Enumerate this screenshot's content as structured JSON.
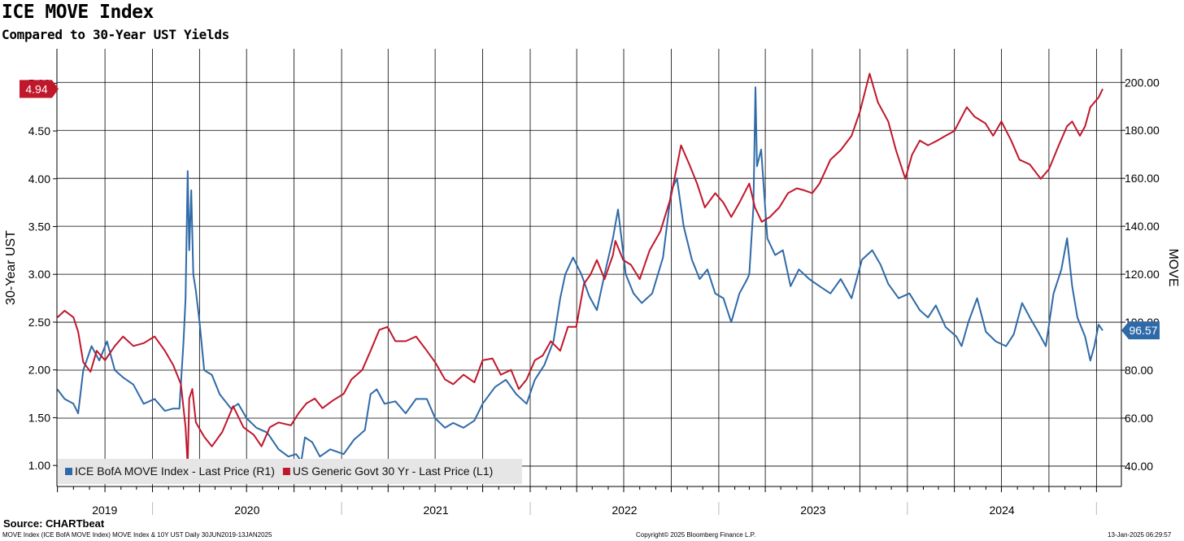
{
  "title": "ICE MOVE Index",
  "subtitle": "Compared to 30-Year UST Yields",
  "source": "Source: CHARTbeat",
  "footer_left": "MOVE Index (ICE BofA MOVE Index) MOVE Index & 10Y UST  Daily 30JUN2019-13JAN2025",
  "footer_center": "Copyright© 2025 Bloomberg Finance L.P.",
  "footer_right": "13-Jan-2025 06:29:57",
  "chart_data": {
    "type": "line",
    "x_range": [
      "2019-06-30",
      "2025-01-13"
    ],
    "x_tick_labels": [
      "2019",
      "2020",
      "2021",
      "2022",
      "2023",
      "2024"
    ],
    "ylabel_left": "30-Year UST",
    "ylabel_right": "MOVE",
    "y_left_ticks": [
      "1.00",
      "1.50",
      "2.00",
      "2.50",
      "3.00",
      "3.50",
      "4.00",
      "4.50",
      "5.00"
    ],
    "y_right_ticks": [
      "40.00",
      "60.00",
      "80.00",
      "100.00",
      "120.00",
      "140.00",
      "160.00",
      "180.00",
      "200.00"
    ],
    "ylim_left": [
      0.78,
      5.36
    ],
    "ylim_right": [
      31.5,
      214
    ],
    "grid": true,
    "legend_position": "bottom-left",
    "series": [
      {
        "name": "ICE BofA MOVE Index - Last Price (R1)",
        "axis": "right",
        "color": "#2f6aa8",
        "last_value_label": "96.57",
        "points": [
          [
            "2019-07-01",
            72
          ],
          [
            "2019-07-15",
            68
          ],
          [
            "2019-08-01",
            66
          ],
          [
            "2019-08-10",
            62
          ],
          [
            "2019-08-20",
            80
          ],
          [
            "2019-09-05",
            90
          ],
          [
            "2019-09-20",
            84
          ],
          [
            "2019-10-05",
            92
          ],
          [
            "2019-10-20",
            80
          ],
          [
            "2019-11-05",
            77
          ],
          [
            "2019-11-25",
            74
          ],
          [
            "2019-12-15",
            66
          ],
          [
            "2020-01-05",
            68
          ],
          [
            "2020-01-25",
            63
          ],
          [
            "2020-02-10",
            64
          ],
          [
            "2020-02-22",
            64
          ],
          [
            "2020-03-01",
            92
          ],
          [
            "2020-03-05",
            110
          ],
          [
            "2020-03-09",
            163
          ],
          [
            "2020-03-12",
            130
          ],
          [
            "2020-03-16",
            155
          ],
          [
            "2020-03-20",
            120
          ],
          [
            "2020-03-25",
            113
          ],
          [
            "2020-04-01",
            100
          ],
          [
            "2020-04-10",
            80
          ],
          [
            "2020-04-25",
            78
          ],
          [
            "2020-05-10",
            70
          ],
          [
            "2020-06-01",
            64
          ],
          [
            "2020-06-15",
            66
          ],
          [
            "2020-07-01",
            60
          ],
          [
            "2020-07-20",
            56
          ],
          [
            "2020-08-10",
            54
          ],
          [
            "2020-09-01",
            47
          ],
          [
            "2020-09-20",
            44
          ],
          [
            "2020-10-05",
            45
          ],
          [
            "2020-10-15",
            42
          ],
          [
            "2020-10-22",
            52
          ],
          [
            "2020-11-05",
            50
          ],
          [
            "2020-11-20",
            44
          ],
          [
            "2020-12-10",
            47
          ],
          [
            "2021-01-05",
            45
          ],
          [
            "2021-01-25",
            51
          ],
          [
            "2021-02-15",
            55
          ],
          [
            "2021-02-26",
            70
          ],
          [
            "2021-03-10",
            72
          ],
          [
            "2021-03-25",
            66
          ],
          [
            "2021-04-15",
            67
          ],
          [
            "2021-05-05",
            62
          ],
          [
            "2021-05-25",
            68
          ],
          [
            "2021-06-15",
            68
          ],
          [
            "2021-07-01",
            60
          ],
          [
            "2021-07-20",
            56
          ],
          [
            "2021-08-05",
            58
          ],
          [
            "2021-08-25",
            56
          ],
          [
            "2021-09-15",
            59
          ],
          [
            "2021-10-01",
            66
          ],
          [
            "2021-10-25",
            73
          ],
          [
            "2021-11-15",
            76
          ],
          [
            "2021-12-05",
            70
          ],
          [
            "2021-12-25",
            66
          ],
          [
            "2022-01-10",
            76
          ],
          [
            "2022-01-28",
            82
          ],
          [
            "2022-02-15",
            92
          ],
          [
            "2022-02-28",
            110
          ],
          [
            "2022-03-10",
            120
          ],
          [
            "2022-03-25",
            127
          ],
          [
            "2022-04-10",
            120
          ],
          [
            "2022-04-25",
            111
          ],
          [
            "2022-05-10",
            105
          ],
          [
            "2022-05-25",
            120
          ],
          [
            "2022-06-10",
            135
          ],
          [
            "2022-06-20",
            147
          ],
          [
            "2022-07-05",
            120
          ],
          [
            "2022-07-20",
            112
          ],
          [
            "2022-08-05",
            108
          ],
          [
            "2022-08-25",
            112
          ],
          [
            "2022-09-15",
            127
          ],
          [
            "2022-10-01",
            155
          ],
          [
            "2022-10-12",
            160
          ],
          [
            "2022-10-25",
            140
          ],
          [
            "2022-11-10",
            126
          ],
          [
            "2022-11-25",
            118
          ],
          [
            "2022-12-10",
            122
          ],
          [
            "2022-12-25",
            112
          ],
          [
            "2023-01-10",
            110
          ],
          [
            "2023-01-25",
            100
          ],
          [
            "2023-02-10",
            112
          ],
          [
            "2023-02-25",
            118
          ],
          [
            "2023-03-01",
            120
          ],
          [
            "2023-03-09",
            148
          ],
          [
            "2023-03-13",
            198
          ],
          [
            "2023-03-16",
            165
          ],
          [
            "2023-03-24",
            172
          ],
          [
            "2023-04-05",
            135
          ],
          [
            "2023-04-20",
            128
          ],
          [
            "2023-05-05",
            130
          ],
          [
            "2023-05-20",
            115
          ],
          [
            "2023-06-05",
            122
          ],
          [
            "2023-06-25",
            118
          ],
          [
            "2023-07-15",
            115
          ],
          [
            "2023-08-05",
            112
          ],
          [
            "2023-08-25",
            118
          ],
          [
            "2023-09-15",
            110
          ],
          [
            "2023-10-05",
            126
          ],
          [
            "2023-10-25",
            130
          ],
          [
            "2023-11-10",
            124
          ],
          [
            "2023-11-25",
            116
          ],
          [
            "2023-12-15",
            110
          ],
          [
            "2024-01-05",
            112
          ],
          [
            "2024-01-25",
            105
          ],
          [
            "2024-02-10",
            102
          ],
          [
            "2024-02-25",
            107
          ],
          [
            "2024-03-15",
            98
          ],
          [
            "2024-04-05",
            94
          ],
          [
            "2024-04-15",
            90
          ],
          [
            "2024-04-28",
            100
          ],
          [
            "2024-05-15",
            110
          ],
          [
            "2024-06-01",
            96
          ],
          [
            "2024-06-20",
            92
          ],
          [
            "2024-07-10",
            90
          ],
          [
            "2024-07-25",
            95
          ],
          [
            "2024-08-10",
            108
          ],
          [
            "2024-08-25",
            102
          ],
          [
            "2024-09-10",
            96
          ],
          [
            "2024-09-25",
            90
          ],
          [
            "2024-10-10",
            112
          ],
          [
            "2024-10-25",
            122
          ],
          [
            "2024-11-05",
            135
          ],
          [
            "2024-11-15",
            115
          ],
          [
            "2024-11-25",
            102
          ],
          [
            "2024-12-10",
            94
          ],
          [
            "2024-12-20",
            84
          ],
          [
            "2024-12-28",
            90
          ],
          [
            "2025-01-05",
            99
          ],
          [
            "2025-01-13",
            96.57
          ]
        ]
      },
      {
        "name": "US Generic Govt 30 Yr - Last Price (L1)",
        "axis": "left",
        "color": "#c0172b",
        "last_value_label": "4.94",
        "points": [
          [
            "2019-07-01",
            2.55
          ],
          [
            "2019-07-15",
            2.62
          ],
          [
            "2019-08-01",
            2.55
          ],
          [
            "2019-08-10",
            2.4
          ],
          [
            "2019-08-20",
            2.08
          ],
          [
            "2019-09-03",
            1.98
          ],
          [
            "2019-09-15",
            2.2
          ],
          [
            "2019-10-01",
            2.1
          ],
          [
            "2019-10-20",
            2.25
          ],
          [
            "2019-11-05",
            2.35
          ],
          [
            "2019-11-25",
            2.25
          ],
          [
            "2019-12-15",
            2.28
          ],
          [
            "2020-01-05",
            2.35
          ],
          [
            "2020-01-25",
            2.2
          ],
          [
            "2020-02-10",
            2.05
          ],
          [
            "2020-02-25",
            1.85
          ],
          [
            "2020-03-05",
            1.4
          ],
          [
            "2020-03-09",
            1.0
          ],
          [
            "2020-03-12",
            1.7
          ],
          [
            "2020-03-18",
            1.8
          ],
          [
            "2020-03-25",
            1.45
          ],
          [
            "2020-04-10",
            1.3
          ],
          [
            "2020-04-25",
            1.2
          ],
          [
            "2020-05-15",
            1.35
          ],
          [
            "2020-06-05",
            1.62
          ],
          [
            "2020-06-25",
            1.4
          ],
          [
            "2020-07-15",
            1.32
          ],
          [
            "2020-07-30",
            1.2
          ],
          [
            "2020-08-15",
            1.4
          ],
          [
            "2020-09-01",
            1.45
          ],
          [
            "2020-09-25",
            1.42
          ],
          [
            "2020-10-10",
            1.55
          ],
          [
            "2020-10-25",
            1.65
          ],
          [
            "2020-11-10",
            1.7
          ],
          [
            "2020-11-25",
            1.6
          ],
          [
            "2020-12-15",
            1.68
          ],
          [
            "2021-01-05",
            1.75
          ],
          [
            "2021-01-20",
            1.9
          ],
          [
            "2021-02-10",
            2.0
          ],
          [
            "2021-02-26",
            2.2
          ],
          [
            "2021-03-15",
            2.42
          ],
          [
            "2021-03-31",
            2.45
          ],
          [
            "2021-04-15",
            2.3
          ],
          [
            "2021-05-05",
            2.3
          ],
          [
            "2021-05-25",
            2.35
          ],
          [
            "2021-06-15",
            2.2
          ],
          [
            "2021-07-01",
            2.08
          ],
          [
            "2021-07-20",
            1.9
          ],
          [
            "2021-08-05",
            1.85
          ],
          [
            "2021-08-25",
            1.95
          ],
          [
            "2021-09-15",
            1.87
          ],
          [
            "2021-10-01",
            2.1
          ],
          [
            "2021-10-20",
            2.12
          ],
          [
            "2021-11-05",
            1.95
          ],
          [
            "2021-11-25",
            2.0
          ],
          [
            "2021-12-10",
            1.8
          ],
          [
            "2021-12-25",
            1.9
          ],
          [
            "2022-01-10",
            2.1
          ],
          [
            "2022-01-25",
            2.15
          ],
          [
            "2022-02-10",
            2.3
          ],
          [
            "2022-02-28",
            2.2
          ],
          [
            "2022-03-15",
            2.45
          ],
          [
            "2022-03-31",
            2.45
          ],
          [
            "2022-04-15",
            2.9
          ],
          [
            "2022-04-28",
            3.0
          ],
          [
            "2022-05-10",
            3.15
          ],
          [
            "2022-05-25",
            2.95
          ],
          [
            "2022-06-10",
            3.2
          ],
          [
            "2022-06-15",
            3.35
          ],
          [
            "2022-06-30",
            3.15
          ],
          [
            "2022-07-15",
            3.1
          ],
          [
            "2022-08-01",
            2.95
          ],
          [
            "2022-08-20",
            3.25
          ],
          [
            "2022-09-10",
            3.45
          ],
          [
            "2022-09-30",
            3.8
          ],
          [
            "2022-10-20",
            4.35
          ],
          [
            "2022-11-05",
            4.15
          ],
          [
            "2022-11-20",
            3.95
          ],
          [
            "2022-12-05",
            3.7
          ],
          [
            "2022-12-25",
            3.85
          ],
          [
            "2023-01-10",
            3.75
          ],
          [
            "2023-01-25",
            3.6
          ],
          [
            "2023-02-10",
            3.75
          ],
          [
            "2023-03-01",
            3.95
          ],
          [
            "2023-03-12",
            3.7
          ],
          [
            "2023-03-25",
            3.55
          ],
          [
            "2023-04-10",
            3.6
          ],
          [
            "2023-04-28",
            3.7
          ],
          [
            "2023-05-15",
            3.85
          ],
          [
            "2023-06-01",
            3.9
          ],
          [
            "2023-06-15",
            3.88
          ],
          [
            "2023-07-01",
            3.85
          ],
          [
            "2023-07-15",
            3.95
          ],
          [
            "2023-08-05",
            4.2
          ],
          [
            "2023-08-25",
            4.3
          ],
          [
            "2023-09-15",
            4.45
          ],
          [
            "2023-10-01",
            4.7
          ],
          [
            "2023-10-20",
            5.1
          ],
          [
            "2023-11-05",
            4.8
          ],
          [
            "2023-11-25",
            4.6
          ],
          [
            "2023-12-10",
            4.3
          ],
          [
            "2023-12-28",
            4.0
          ],
          [
            "2024-01-10",
            4.25
          ],
          [
            "2024-01-25",
            4.4
          ],
          [
            "2024-02-10",
            4.35
          ],
          [
            "2024-02-28",
            4.4
          ],
          [
            "2024-03-15",
            4.45
          ],
          [
            "2024-04-01",
            4.5
          ],
          [
            "2024-04-25",
            4.75
          ],
          [
            "2024-05-10",
            4.65
          ],
          [
            "2024-05-31",
            4.58
          ],
          [
            "2024-06-15",
            4.45
          ],
          [
            "2024-07-01",
            4.6
          ],
          [
            "2024-07-20",
            4.4
          ],
          [
            "2024-08-05",
            4.2
          ],
          [
            "2024-08-25",
            4.15
          ],
          [
            "2024-09-15",
            4.0
          ],
          [
            "2024-10-01",
            4.1
          ],
          [
            "2024-10-20",
            4.35
          ],
          [
            "2024-11-05",
            4.55
          ],
          [
            "2024-11-15",
            4.6
          ],
          [
            "2024-11-30",
            4.45
          ],
          [
            "2024-12-10",
            4.55
          ],
          [
            "2024-12-20",
            4.75
          ],
          [
            "2025-01-05",
            4.85
          ],
          [
            "2025-01-13",
            4.94
          ]
        ]
      }
    ]
  }
}
